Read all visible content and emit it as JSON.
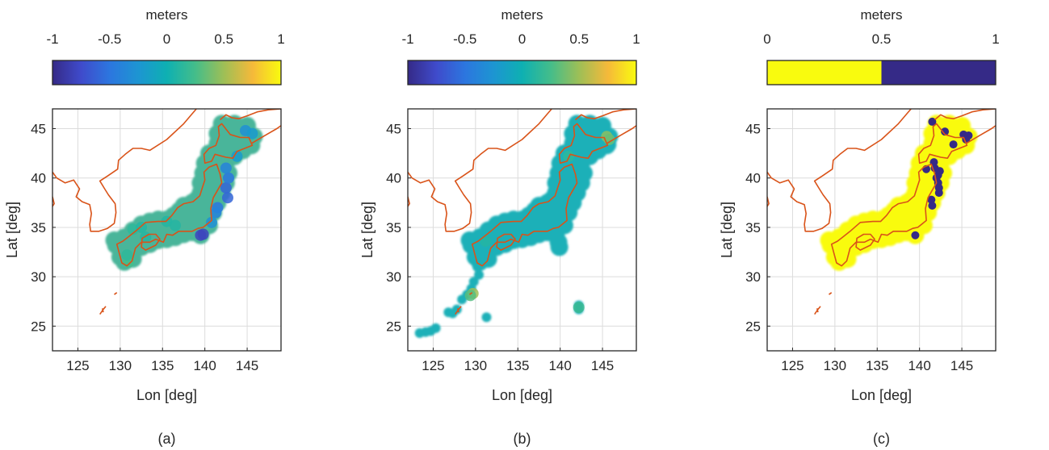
{
  "figure": {
    "panels": [
      {
        "label": "(a)",
        "colorbar": {
          "title": "meters",
          "ticks": [
            "-1",
            "-0.5",
            "0",
            "0.5",
            "1"
          ],
          "min": -1,
          "max": 1,
          "colormap": "parula"
        },
        "x_axis": {
          "label": "Lon [deg]",
          "ticks": [
            "125",
            "130",
            "135",
            "140",
            "145"
          ]
        },
        "y_axis": {
          "label": "Lat [deg]",
          "ticks": [
            "25",
            "30",
            "35",
            "40",
            "45"
          ]
        }
      },
      {
        "label": "(b)",
        "colorbar": {
          "title": "meters",
          "ticks": [
            "-1",
            "-0.5",
            "0",
            "0.5",
            "1"
          ],
          "min": -1,
          "max": 1,
          "colormap": "parula"
        },
        "x_axis": {
          "label": "Lon [deg]",
          "ticks": [
            "125",
            "130",
            "135",
            "140",
            "145"
          ]
        },
        "y_axis": {
          "label": "Lat [deg]",
          "ticks": [
            "25",
            "30",
            "35",
            "40",
            "45"
          ]
        }
      },
      {
        "label": "(c)",
        "colorbar": {
          "title": "meters",
          "ticks": [
            "0",
            "0.5",
            "1"
          ],
          "min": 0,
          "max": 1,
          "colormap": "binary"
        },
        "x_axis": {
          "label": "Lon [deg]",
          "ticks": [
            "125",
            "130",
            "135",
            "140",
            "145"
          ]
        },
        "y_axis": {
          "label": "Lat [deg]",
          "ticks": [
            "25",
            "30",
            "35",
            "40",
            "45"
          ]
        }
      }
    ]
  },
  "chart_data": [
    {
      "type": "scatter",
      "xlim": [
        122,
        149
      ],
      "ylim": [
        22.5,
        47
      ],
      "grid": true,
      "xlabel": "Lon [deg]",
      "ylabel": "Lat [deg]",
      "color_range": [
        -1,
        1
      ],
      "colors": {
        "coast": "#d95319",
        "low": "#352a87",
        "high": "#f9fb0e"
      },
      "coverage_points": [
        [
          129.5,
          33.2
        ],
        [
          130,
          32
        ],
        [
          130.5,
          31.5
        ],
        [
          131,
          32
        ],
        [
          131.5,
          31.8
        ],
        [
          132.5,
          33
        ],
        [
          133.5,
          33.3
        ],
        [
          134.5,
          33.7
        ],
        [
          135.5,
          33.8
        ],
        [
          136.5,
          34
        ],
        [
          137.5,
          34.3
        ],
        [
          138.5,
          34.5
        ],
        [
          139.5,
          34.6
        ],
        [
          140.5,
          35.2
        ],
        [
          141,
          36.5
        ],
        [
          141.5,
          37.5
        ],
        [
          142,
          38.5
        ],
        [
          142.5,
          39.5
        ],
        [
          142.8,
          40.5
        ],
        [
          142.5,
          41.5
        ],
        [
          143.5,
          42.2
        ],
        [
          144.5,
          42.8
        ],
        [
          145.5,
          43.3
        ],
        [
          145.8,
          44.2
        ],
        [
          145,
          45.3
        ],
        [
          143.5,
          45.5
        ],
        [
          142,
          45.5
        ],
        [
          141.5,
          44.5
        ],
        [
          141.5,
          43.5
        ],
        [
          140.5,
          42.5
        ],
        [
          140,
          41.5
        ],
        [
          139.8,
          40.5
        ],
        [
          139.5,
          39.5
        ],
        [
          139.5,
          38.5
        ],
        [
          139,
          37.8
        ],
        [
          138.5,
          37.5
        ],
        [
          137.5,
          37.2
        ],
        [
          137,
          36.7
        ],
        [
          136.3,
          36.2
        ],
        [
          135.5,
          35.8
        ],
        [
          134.5,
          35.8
        ],
        [
          133.5,
          35.6
        ],
        [
          132.5,
          35.3
        ],
        [
          131.5,
          34.7
        ],
        [
          130.5,
          34
        ],
        [
          129.3,
          33.7
        ],
        [
          130.5,
          33
        ],
        [
          131.5,
          33
        ],
        [
          132.5,
          34
        ],
        [
          133.5,
          34.5
        ],
        [
          134.5,
          34.6
        ],
        [
          135.5,
          34.8
        ],
        [
          136.5,
          35
        ],
        [
          137.5,
          35.3
        ],
        [
          138.5,
          35.7
        ],
        [
          139.5,
          35.8
        ],
        [
          140,
          37
        ],
        [
          140.5,
          38
        ],
        [
          141,
          39
        ],
        [
          141.5,
          40
        ],
        [
          141.5,
          41
        ],
        [
          142.5,
          42.5
        ],
        [
          143.5,
          43.5
        ],
        [
          144.5,
          43.8
        ],
        [
          142.5,
          44.5
        ],
        [
          143.5,
          44.5
        ],
        [
          141,
          42
        ],
        [
          138.5,
          36.5
        ],
        [
          137.5,
          36
        ],
        [
          136,
          35.5
        ],
        [
          134,
          35
        ],
        [
          132,
          34
        ],
        [
          131,
          33.5
        ],
        [
          140.5,
          39.8
        ],
        [
          139.5,
          34.2
        ]
      ],
      "anomaly_points": [
        [
          139.5,
          34.2,
          -0.8
        ],
        [
          139.8,
          34.3,
          -0.8
        ],
        [
          142.5,
          39,
          -0.6
        ],
        [
          142.7,
          38,
          -0.6
        ],
        [
          142.8,
          40,
          -0.5
        ],
        [
          142.5,
          41,
          -0.4
        ],
        [
          141.5,
          37,
          -0.5
        ],
        [
          141.3,
          36.5,
          -0.4
        ],
        [
          140.8,
          35.5,
          -0.3
        ],
        [
          144.8,
          44.8,
          -0.3
        ],
        [
          145.6,
          44.5,
          -0.2
        ],
        [
          143.8,
          42.2,
          -0.2
        ],
        [
          131,
          31.5,
          0.25
        ],
        [
          130.8,
          32.2,
          0.15
        ],
        [
          131.5,
          34.8,
          0.15
        ],
        [
          132.5,
          35,
          0.1
        ],
        [
          133,
          34,
          0.1
        ],
        [
          135.5,
          35.6,
          0.1
        ],
        [
          136.5,
          35.2,
          0.1
        ]
      ]
    },
    {
      "type": "scatter",
      "xlim": [
        122,
        149
      ],
      "ylim": [
        22.5,
        47
      ],
      "grid": true,
      "xlabel": "Lon [deg]",
      "ylabel": "Lat [deg]",
      "color_range": [
        -1,
        1
      ],
      "coverage_points": [
        [
          129.5,
          33.2
        ],
        [
          130,
          32
        ],
        [
          130.5,
          31.5
        ],
        [
          131,
          32
        ],
        [
          131.5,
          31.8
        ],
        [
          132.5,
          33
        ],
        [
          133.5,
          33.3
        ],
        [
          134.5,
          33.7
        ],
        [
          135.5,
          33.8
        ],
        [
          136.5,
          34
        ],
        [
          137.5,
          34.3
        ],
        [
          138.5,
          34.5
        ],
        [
          139.5,
          34.6
        ],
        [
          140.5,
          35.2
        ],
        [
          141,
          36.5
        ],
        [
          141.5,
          37.5
        ],
        [
          142,
          38.5
        ],
        [
          142.5,
          39.5
        ],
        [
          142.8,
          40.5
        ],
        [
          142.5,
          41.5
        ],
        [
          143.5,
          42.2
        ],
        [
          144.5,
          42.8
        ],
        [
          145.5,
          43.3
        ],
        [
          145.8,
          44.2
        ],
        [
          145,
          45.3
        ],
        [
          143.5,
          45.5
        ],
        [
          142,
          45.5
        ],
        [
          141.5,
          44.5
        ],
        [
          141.5,
          43.5
        ],
        [
          140.5,
          42.5
        ],
        [
          140,
          41.5
        ],
        [
          139.8,
          40.5
        ],
        [
          139.5,
          39.5
        ],
        [
          139.5,
          38.5
        ],
        [
          139,
          37.8
        ],
        [
          138.5,
          37.5
        ],
        [
          137.5,
          37.2
        ],
        [
          137,
          36.7
        ],
        [
          136.3,
          36.2
        ],
        [
          135.5,
          35.8
        ],
        [
          134.5,
          35.8
        ],
        [
          133.5,
          35.6
        ],
        [
          132.5,
          35.3
        ],
        [
          131.5,
          34.7
        ],
        [
          130.5,
          34
        ],
        [
          129.3,
          33.7
        ],
        [
          130.5,
          33
        ],
        [
          131.5,
          33
        ],
        [
          132.5,
          34
        ],
        [
          133.5,
          34.5
        ],
        [
          134.5,
          34.6
        ],
        [
          135.5,
          34.8
        ],
        [
          136.5,
          35
        ],
        [
          137.5,
          35.3
        ],
        [
          138.5,
          35.7
        ],
        [
          139.5,
          35.8
        ],
        [
          140,
          37
        ],
        [
          140.5,
          38
        ],
        [
          141,
          39
        ],
        [
          141.5,
          40
        ],
        [
          141.5,
          41
        ],
        [
          142.5,
          42.5
        ],
        [
          143.5,
          43.5
        ],
        [
          144.5,
          43.8
        ],
        [
          142.5,
          44.5
        ],
        [
          143.5,
          44.5
        ],
        [
          141,
          42
        ],
        [
          138.5,
          36.5
        ],
        [
          137.5,
          36
        ],
        [
          136,
          35.5
        ],
        [
          134,
          35
        ],
        [
          132,
          34
        ],
        [
          131,
          33.5
        ],
        [
          140.5,
          39.8
        ],
        [
          139.5,
          34.2
        ],
        [
          130.2,
          31
        ],
        [
          130.4,
          30.2
        ],
        [
          129.8,
          29.5
        ],
        [
          129.5,
          28.8
        ],
        [
          129,
          28.2
        ],
        [
          128.4,
          27.7
        ],
        [
          127.8,
          26.7
        ],
        [
          127.3,
          26.3
        ],
        [
          126.8,
          26.4
        ],
        [
          125.3,
          24.8
        ],
        [
          124.7,
          24.5
        ],
        [
          124.1,
          24.4
        ],
        [
          123.4,
          24.3
        ],
        [
          131.3,
          25.9
        ],
        [
          142.2,
          27.1
        ],
        [
          142.2,
          26.7
        ],
        [
          139.6,
          34.8
        ],
        [
          139.8,
          33.5
        ],
        [
          139.9,
          33
        ],
        [
          145.6,
          43.4
        ]
      ],
      "anomaly_points": [
        [
          129.7,
          28.3,
          0.5
        ],
        [
          129.4,
          28.1,
          0.3
        ],
        [
          145.5,
          44.2,
          0.45
        ],
        [
          145.8,
          43.9,
          0.35
        ],
        [
          141,
          42.2,
          0.15
        ],
        [
          131.2,
          33.6,
          0.1
        ],
        [
          142.2,
          26.9,
          0.2
        ]
      ]
    },
    {
      "type": "scatter",
      "xlim": [
        122,
        149
      ],
      "ylim": [
        22.5,
        47
      ],
      "grid": true,
      "xlabel": "Lon [deg]",
      "ylabel": "Lat [deg]",
      "color_range": [
        0,
        1
      ],
      "coverage_points": [
        [
          129.5,
          33.2
        ],
        [
          130,
          32
        ],
        [
          130.5,
          31.5
        ],
        [
          131,
          32
        ],
        [
          131.5,
          31.8
        ],
        [
          132.5,
          33
        ],
        [
          133.5,
          33.3
        ],
        [
          134.5,
          33.7
        ],
        [
          135.5,
          33.8
        ],
        [
          136.5,
          34
        ],
        [
          137.5,
          34.3
        ],
        [
          138.5,
          34.5
        ],
        [
          139.5,
          34.6
        ],
        [
          140.5,
          35.2
        ],
        [
          141,
          36.5
        ],
        [
          141.5,
          37.5
        ],
        [
          142,
          38.5
        ],
        [
          142.5,
          39.5
        ],
        [
          142.8,
          40.5
        ],
        [
          142.5,
          41.5
        ],
        [
          143.5,
          42.2
        ],
        [
          144.5,
          42.8
        ],
        [
          145.5,
          43.3
        ],
        [
          145.8,
          44.2
        ],
        [
          145,
          45.3
        ],
        [
          143.5,
          45.5
        ],
        [
          142,
          45.5
        ],
        [
          141.5,
          44.5
        ],
        [
          141.5,
          43.5
        ],
        [
          140.5,
          42.5
        ],
        [
          140,
          41.5
        ],
        [
          139.8,
          40.5
        ],
        [
          139.5,
          39.5
        ],
        [
          139.5,
          38.5
        ],
        [
          139,
          37.8
        ],
        [
          138.5,
          37.5
        ],
        [
          137.5,
          37.2
        ],
        [
          137,
          36.7
        ],
        [
          136.3,
          36.2
        ],
        [
          135.5,
          35.8
        ],
        [
          134.5,
          35.8
        ],
        [
          133.5,
          35.6
        ],
        [
          132.5,
          35.3
        ],
        [
          131.5,
          34.7
        ],
        [
          130.5,
          34
        ],
        [
          129.3,
          33.7
        ],
        [
          130.5,
          33
        ],
        [
          131.5,
          33
        ],
        [
          132.5,
          34
        ],
        [
          133.5,
          34.5
        ],
        [
          134.5,
          34.6
        ],
        [
          135.5,
          34.8
        ],
        [
          136.5,
          35
        ],
        [
          137.5,
          35.3
        ],
        [
          138.5,
          35.7
        ],
        [
          139.5,
          35.8
        ],
        [
          140,
          37
        ],
        [
          140.5,
          38
        ],
        [
          141,
          39
        ],
        [
          141.5,
          40
        ],
        [
          141.5,
          41
        ],
        [
          142.5,
          42.5
        ],
        [
          143.5,
          43.5
        ],
        [
          144.5,
          43.8
        ],
        [
          142.5,
          44.5
        ],
        [
          143.5,
          44.5
        ],
        [
          141,
          42
        ],
        [
          138.5,
          36.5
        ],
        [
          137.5,
          36
        ],
        [
          136,
          35.5
        ],
        [
          134,
          35
        ],
        [
          132,
          34
        ],
        [
          131,
          33.5
        ],
        [
          140.5,
          39.8
        ],
        [
          139.5,
          34.2
        ]
      ],
      "anomaly_points": [
        [
          139.5,
          34.2,
          1
        ],
        [
          142,
          40,
          1
        ],
        [
          142.2,
          39.5,
          1
        ],
        [
          142.3,
          39,
          1
        ],
        [
          142.3,
          38.5,
          1
        ],
        [
          142.4,
          40.7,
          1
        ],
        [
          141.7,
          41.6,
          1
        ],
        [
          141.8,
          41,
          1
        ],
        [
          142.2,
          40.3,
          1
        ],
        [
          140.8,
          40.9,
          1
        ],
        [
          141.4,
          37.8,
          1
        ],
        [
          141.5,
          37.2,
          1
        ],
        [
          145.2,
          44.4,
          1
        ],
        [
          145.8,
          44.3,
          1
        ],
        [
          145.5,
          43.9,
          1
        ],
        [
          144,
          43.4,
          1
        ],
        [
          141.5,
          45.7,
          1
        ],
        [
          143,
          44.7,
          1
        ]
      ]
    }
  ]
}
